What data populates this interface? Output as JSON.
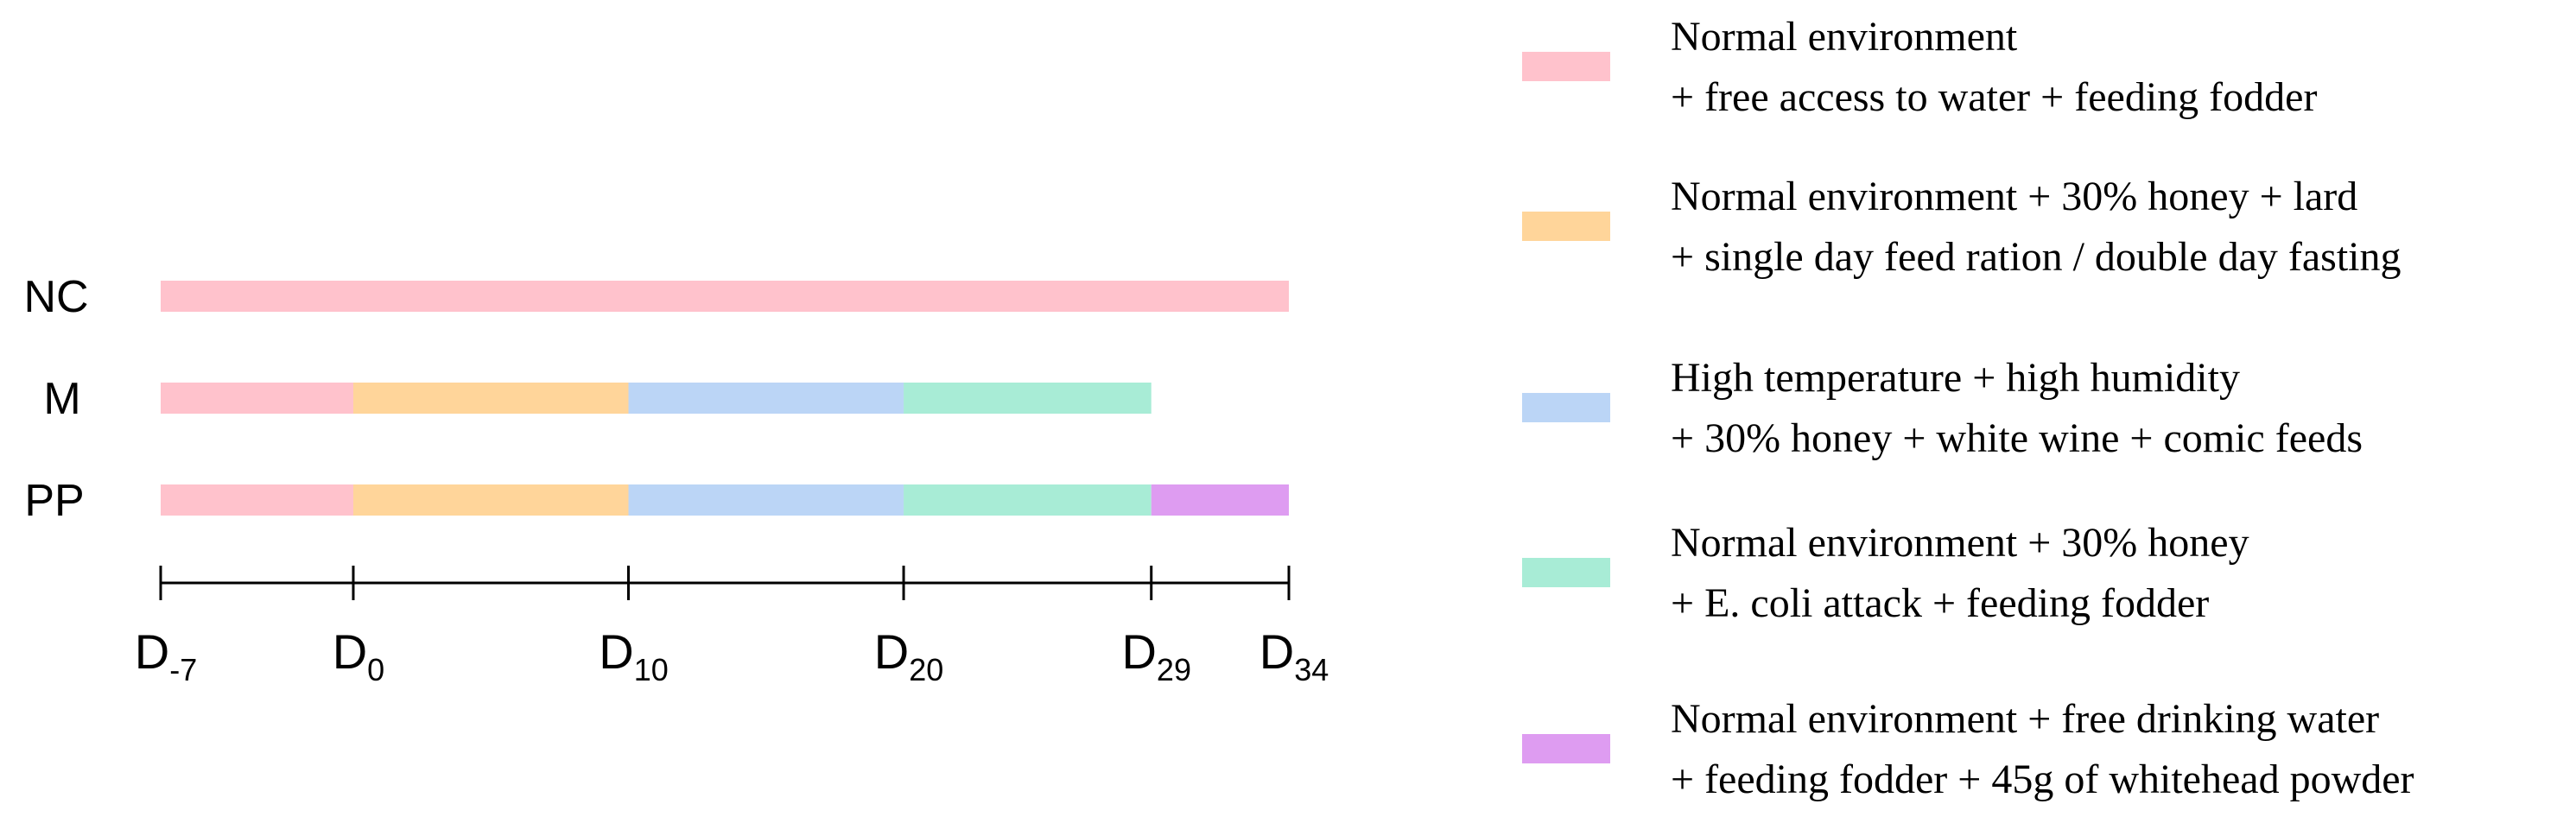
{
  "colors": {
    "pink": "#FFC2CC",
    "orange": "#FFD59A",
    "blue": "#BBD5F6",
    "green": "#A8ECD6",
    "purple": "#DE9CF1",
    "axis": "#000000"
  },
  "timeline": {
    "days": [
      -7,
      0,
      10,
      20,
      29,
      34
    ],
    "ticks": [
      {
        "day": -7,
        "base": "D",
        "sub": "-7"
      },
      {
        "day": 0,
        "base": "D",
        "sub": "0"
      },
      {
        "day": 10,
        "base": "D",
        "sub": "10"
      },
      {
        "day": 20,
        "base": "D",
        "sub": "20"
      },
      {
        "day": 29,
        "base": "D",
        "sub": "29"
      },
      {
        "day": 34,
        "base": "D",
        "sub": "34"
      }
    ]
  },
  "groups": [
    {
      "label": "NC",
      "segments": [
        {
          "start": -7,
          "end": 34,
          "color": "pink"
        }
      ]
    },
    {
      "label": "M",
      "segments": [
        {
          "start": -7,
          "end": 0,
          "color": "pink"
        },
        {
          "start": 0,
          "end": 10,
          "color": "orange"
        },
        {
          "start": 10,
          "end": 20,
          "color": "blue"
        },
        {
          "start": 20,
          "end": 29,
          "color": "green"
        }
      ]
    },
    {
      "label": "PP",
      "segments": [
        {
          "start": -7,
          "end": 0,
          "color": "pink"
        },
        {
          "start": 0,
          "end": 10,
          "color": "orange"
        },
        {
          "start": 10,
          "end": 20,
          "color": "blue"
        },
        {
          "start": 20,
          "end": 29,
          "color": "green"
        },
        {
          "start": 29,
          "end": 34,
          "color": "purple"
        }
      ]
    }
  ],
  "legend": [
    {
      "color": "pink",
      "lines": [
        "Normal environment",
        "+ free access to water + feeding fodder"
      ]
    },
    {
      "color": "orange",
      "lines": [
        "Normal environment + 30% honey + lard",
        "+ single day feed ration / double day fasting"
      ]
    },
    {
      "color": "blue",
      "lines": [
        "High temperature + high humidity",
        "+ 30% honey + white wine + comic feeds"
      ]
    },
    {
      "color": "green",
      "lines": [
        "Normal environment + 30% honey",
        "+ E. coli attack + feeding fodder"
      ]
    },
    {
      "color": "purple",
      "lines": [
        "Normal environment + free drinking water",
        "+ feeding fodder + 45g of whitehead powder"
      ]
    }
  ]
}
